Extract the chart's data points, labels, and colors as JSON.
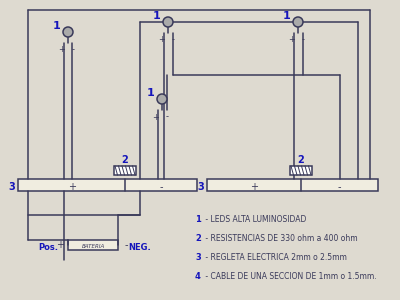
{
  "bg_color": "#dedad0",
  "line_color": "#3a3a5a",
  "blue_color": "#1515bb",
  "legend": [
    "1 - LEDS ALTA LUMINOSIDAD",
    "2 - RESISTENCIAS DE 330 ohm a 400 ohm",
    "3 - REGLETA ELECTRICA 2mm o 2.5mm",
    "4 - CABLE DE UNA SECCION DE 1mm o 1.5mm."
  ],
  "fig_width": 4.0,
  "fig_height": 3.0
}
